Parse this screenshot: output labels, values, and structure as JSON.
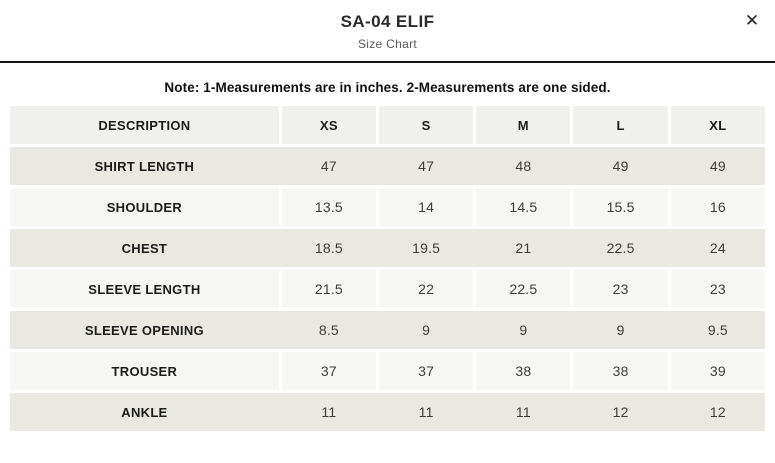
{
  "modal": {
    "title": "SA-04 ELIF",
    "subtitle": "Size Chart",
    "close_icon": "✕",
    "note": "Note: 1-Measurements are in inches. 2-Measurements are one sided."
  },
  "table": {
    "headers": [
      "DESCRIPTION",
      "XS",
      "S",
      "M",
      "L",
      "XL"
    ],
    "rows": [
      {
        "label": "SHIRT LENGTH",
        "values": [
          "47",
          "47",
          "48",
          "49",
          "49"
        ]
      },
      {
        "label": "SHOULDER",
        "values": [
          "13.5",
          "14",
          "14.5",
          "15.5",
          "16"
        ]
      },
      {
        "label": "CHEST",
        "values": [
          "18.5",
          "19.5",
          "21",
          "22.5",
          "24"
        ]
      },
      {
        "label": "SLEEVE LENGTH",
        "values": [
          "21.5",
          "22",
          "22.5",
          "23",
          "23"
        ]
      },
      {
        "label": "SLEEVE OPENING",
        "values": [
          "8.5",
          "9",
          "9",
          "9",
          "9.5"
        ]
      },
      {
        "label": "TROUSER",
        "values": [
          "37",
          "37",
          "38",
          "38",
          "39"
        ]
      },
      {
        "label": "ANKLE",
        "values": [
          "11",
          "11",
          "11",
          "12",
          "12"
        ]
      }
    ]
  },
  "colors": {
    "row_beige": "#e9e9e1",
    "row_light": "#f6f6f4",
    "header_bg": "#f0f0ee",
    "divider": "#161616"
  }
}
